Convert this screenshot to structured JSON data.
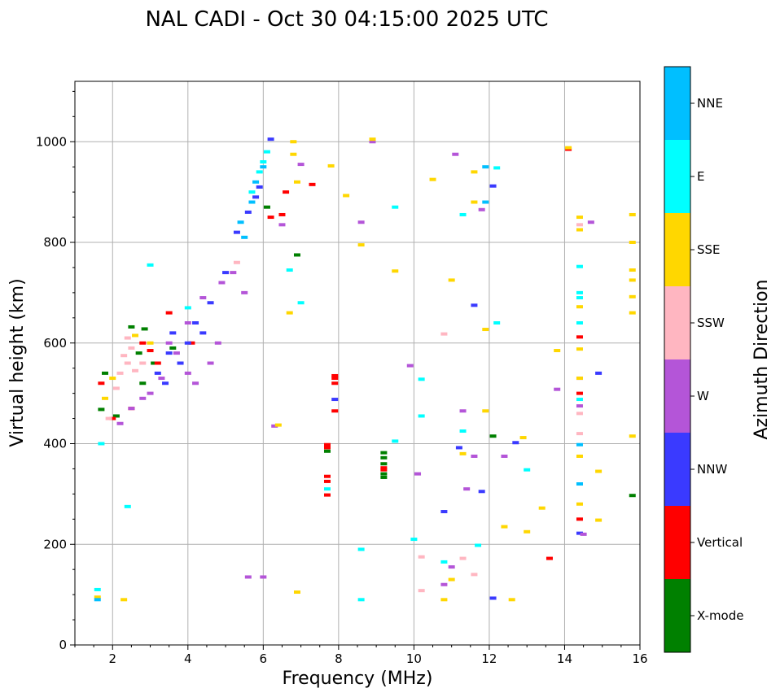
{
  "chart_data": {
    "type": "scatter",
    "title": "NAL CADI - Oct 30 04:15:00 2025 UTC",
    "xlabel": "Frequency (MHz)",
    "ylabel": "Virtual height (km)",
    "xlim": [
      1,
      16
    ],
    "ylim": [
      0,
      1120
    ],
    "x_ticks": [
      2,
      4,
      6,
      8,
      10,
      12,
      14,
      16
    ],
    "y_ticks": [
      0,
      200,
      400,
      600,
      800,
      1000
    ],
    "grid": true,
    "colorbar": {
      "title": "Azimuth Direction",
      "categories": [
        {
          "label": "X-mode",
          "color": "#008000"
        },
        {
          "label": "Vertical",
          "color": "#ff0000"
        },
        {
          "label": "NNW",
          "color": "#3a3aff"
        },
        {
          "label": "W",
          "color": "#b455d8"
        },
        {
          "label": "SSW",
          "color": "#ffb6c1"
        },
        {
          "label": "SSE",
          "color": "#ffd700"
        },
        {
          "label": "E",
          "color": "#00ffff"
        },
        {
          "label": "NNE",
          "color": "#00bfff"
        }
      ]
    },
    "series": [
      {
        "name": "X-mode",
        "points": [
          [
            1.7,
            468
          ],
          [
            1.8,
            540
          ],
          [
            2.1,
            455
          ],
          [
            2.5,
            632
          ],
          [
            2.7,
            580
          ],
          [
            2.8,
            520
          ],
          [
            3.1,
            560
          ],
          [
            3.6,
            590
          ],
          [
            7.7,
            385
          ],
          [
            9.2,
            382
          ],
          [
            9.2,
            372
          ],
          [
            9.2,
            360
          ],
          [
            9.2,
            340
          ],
          [
            9.2,
            333
          ],
          [
            12.1,
            415
          ],
          [
            15.8,
            297
          ],
          [
            6.1,
            870
          ],
          [
            6.9,
            775
          ],
          [
            2.85,
            628
          ]
        ]
      },
      {
        "name": "Vertical",
        "points": [
          [
            1.7,
            520
          ],
          [
            2.0,
            450
          ],
          [
            2.5,
            470
          ],
          [
            2.8,
            600
          ],
          [
            3.0,
            585
          ],
          [
            3.2,
            560
          ],
          [
            3.5,
            660
          ],
          [
            4.1,
            600
          ],
          [
            6.5,
            855
          ],
          [
            6.6,
            900
          ],
          [
            7.3,
            915
          ],
          [
            7.7,
            398
          ],
          [
            7.7,
            392
          ],
          [
            7.7,
            335
          ],
          [
            7.7,
            325
          ],
          [
            7.7,
            298
          ],
          [
            7.9,
            520
          ],
          [
            7.9,
            535
          ],
          [
            7.9,
            530
          ],
          [
            7.9,
            465
          ],
          [
            9.2,
            348
          ],
          [
            9.2,
            352
          ],
          [
            13.6,
            172
          ],
          [
            14.1,
            985
          ],
          [
            14.4,
            500
          ],
          [
            14.4,
            612
          ],
          [
            14.4,
            250
          ],
          [
            6.2,
            850
          ]
        ]
      },
      {
        "name": "NNW",
        "points": [
          [
            3.2,
            540
          ],
          [
            3.4,
            520
          ],
          [
            3.5,
            580
          ],
          [
            3.8,
            560
          ],
          [
            4.0,
            600
          ],
          [
            4.2,
            640
          ],
          [
            4.4,
            620
          ],
          [
            5.0,
            740
          ],
          [
            5.3,
            820
          ],
          [
            5.6,
            860
          ],
          [
            5.8,
            890
          ],
          [
            5.9,
            910
          ],
          [
            6.2,
            1005
          ],
          [
            7.9,
            488
          ],
          [
            10.8,
            265
          ],
          [
            11.2,
            392
          ],
          [
            11.6,
            675
          ],
          [
            11.8,
            305
          ],
          [
            12.1,
            93
          ],
          [
            12.1,
            912
          ],
          [
            12.7,
            402
          ],
          [
            14.4,
            222
          ],
          [
            14.9,
            540
          ],
          [
            3.6,
            620
          ],
          [
            4.6,
            680
          ]
        ]
      },
      {
        "name": "W",
        "points": [
          [
            2.2,
            440
          ],
          [
            2.5,
            470
          ],
          [
            2.8,
            490
          ],
          [
            3.0,
            500
          ],
          [
            3.3,
            530
          ],
          [
            3.5,
            600
          ],
          [
            3.7,
            580
          ],
          [
            4.0,
            640
          ],
          [
            4.0,
            540
          ],
          [
            4.2,
            520
          ],
          [
            4.4,
            690
          ],
          [
            4.6,
            560
          ],
          [
            4.9,
            720
          ],
          [
            5.2,
            740
          ],
          [
            5.5,
            700
          ],
          [
            5.6,
            135
          ],
          [
            6.0,
            135
          ],
          [
            6.3,
            435
          ],
          [
            6.5,
            835
          ],
          [
            7.0,
            955
          ],
          [
            8.6,
            840
          ],
          [
            8.9,
            1000
          ],
          [
            9.9,
            555
          ],
          [
            10.1,
            340
          ],
          [
            10.8,
            120
          ],
          [
            11.0,
            155
          ],
          [
            11.1,
            975
          ],
          [
            11.3,
            465
          ],
          [
            11.4,
            310
          ],
          [
            11.6,
            375
          ],
          [
            11.8,
            865
          ],
          [
            12.4,
            375
          ],
          [
            13.8,
            508
          ],
          [
            14.4,
            475
          ],
          [
            14.4,
            530
          ],
          [
            14.5,
            220
          ],
          [
            14.7,
            840
          ],
          [
            4.8,
            600
          ]
        ]
      },
      {
        "name": "SSW",
        "points": [
          [
            1.9,
            450
          ],
          [
            2.1,
            510
          ],
          [
            2.2,
            540
          ],
          [
            2.3,
            575
          ],
          [
            2.4,
            560
          ],
          [
            2.5,
            590
          ],
          [
            2.6,
            545
          ],
          [
            2.8,
            560
          ],
          [
            10.2,
            108
          ],
          [
            10.2,
            175
          ],
          [
            10.8,
            618
          ],
          [
            11.3,
            172
          ],
          [
            11.6,
            140
          ],
          [
            14.4,
            460
          ],
          [
            14.4,
            420
          ],
          [
            14.4,
            835
          ],
          [
            2.4,
            610
          ],
          [
            5.3,
            760
          ]
        ]
      },
      {
        "name": "SSE",
        "points": [
          [
            1.6,
            95
          ],
          [
            1.8,
            490
          ],
          [
            2.0,
            530
          ],
          [
            2.3,
            90
          ],
          [
            2.6,
            615
          ],
          [
            3.0,
            600
          ],
          [
            6.4,
            437
          ],
          [
            6.7,
            660
          ],
          [
            6.8,
            1000
          ],
          [
            6.8,
            975
          ],
          [
            6.9,
            920
          ],
          [
            6.9,
            105
          ],
          [
            7.8,
            952
          ],
          [
            8.2,
            893
          ],
          [
            8.6,
            795
          ],
          [
            8.9,
            1005
          ],
          [
            9.5,
            743
          ],
          [
            10.5,
            925
          ],
          [
            10.8,
            90
          ],
          [
            11.0,
            130
          ],
          [
            11.0,
            725
          ],
          [
            11.3,
            380
          ],
          [
            11.6,
            940
          ],
          [
            11.6,
            880
          ],
          [
            11.9,
            627
          ],
          [
            11.9,
            465
          ],
          [
            12.4,
            235
          ],
          [
            12.6,
            90
          ],
          [
            12.9,
            412
          ],
          [
            13.0,
            225
          ],
          [
            13.4,
            272
          ],
          [
            13.8,
            585
          ],
          [
            14.1,
            988
          ],
          [
            14.4,
            850
          ],
          [
            14.4,
            825
          ],
          [
            14.4,
            672
          ],
          [
            14.4,
            588
          ],
          [
            14.4,
            530
          ],
          [
            14.4,
            375
          ],
          [
            14.4,
            280
          ],
          [
            14.9,
            345
          ],
          [
            14.9,
            248
          ],
          [
            15.8,
            855
          ],
          [
            15.8,
            800
          ],
          [
            15.8,
            745
          ],
          [
            15.8,
            725
          ],
          [
            15.8,
            692
          ],
          [
            15.8,
            660
          ],
          [
            15.8,
            415
          ]
        ]
      },
      {
        "name": "E",
        "points": [
          [
            1.6,
            110
          ],
          [
            1.7,
            400
          ],
          [
            2.4,
            275
          ],
          [
            3.0,
            755
          ],
          [
            4.0,
            670
          ],
          [
            5.9,
            940
          ],
          [
            6.0,
            960
          ],
          [
            6.1,
            980
          ],
          [
            6.7,
            745
          ],
          [
            7.0,
            680
          ],
          [
            7.7,
            310
          ],
          [
            8.6,
            190
          ],
          [
            8.6,
            90
          ],
          [
            9.5,
            870
          ],
          [
            9.5,
            405
          ],
          [
            10.0,
            210
          ],
          [
            10.2,
            455
          ],
          [
            10.2,
            528
          ],
          [
            10.8,
            165
          ],
          [
            11.3,
            855
          ],
          [
            11.3,
            425
          ],
          [
            11.7,
            198
          ],
          [
            12.2,
            948
          ],
          [
            12.2,
            640
          ],
          [
            13.0,
            348
          ],
          [
            14.4,
            752
          ],
          [
            14.4,
            700
          ],
          [
            14.4,
            690
          ],
          [
            14.4,
            640
          ],
          [
            14.4,
            488
          ],
          [
            14.4,
            320
          ],
          [
            5.7,
            900
          ]
        ]
      },
      {
        "name": "NNE",
        "points": [
          [
            1.6,
            90
          ],
          [
            5.4,
            840
          ],
          [
            5.7,
            880
          ],
          [
            5.8,
            920
          ],
          [
            6.0,
            950
          ],
          [
            11.9,
            950
          ],
          [
            11.9,
            880
          ],
          [
            14.4,
            320
          ],
          [
            14.4,
            398
          ],
          [
            5.5,
            810
          ]
        ]
      }
    ]
  }
}
